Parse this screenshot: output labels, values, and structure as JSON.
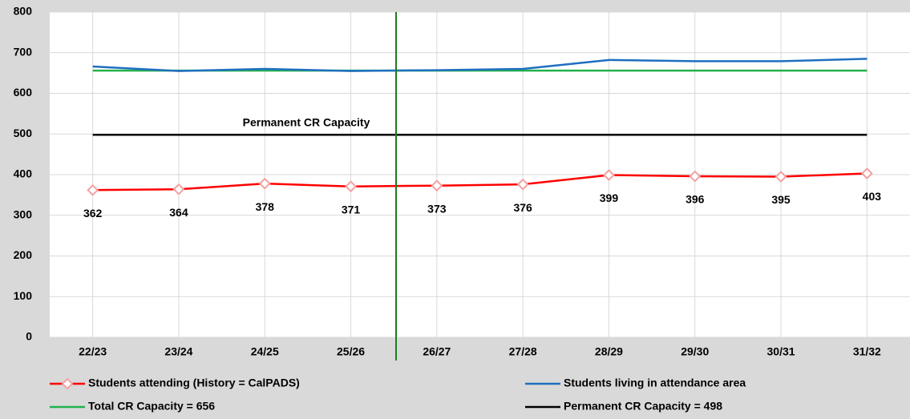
{
  "chart_data": {
    "type": "line",
    "categories": [
      "22/23",
      "23/24",
      "24/25",
      "25/26",
      "26/27",
      "27/28",
      "28/29",
      "29/30",
      "30/31",
      "31/32"
    ],
    "series": [
      {
        "name": "Students attending (History = CalPADS)",
        "color": "#ff0000",
        "marker": "diamond",
        "data_labels": true,
        "values": [
          362,
          364,
          378,
          371,
          373,
          376,
          399,
          396,
          395,
          403
        ]
      },
      {
        "name": "Students living in attendance area",
        "color": "#1f6fc0",
        "values": [
          666,
          655,
          660,
          655,
          657,
          660,
          682,
          679,
          679,
          685
        ]
      },
      {
        "name": "Total CR Capacity = 656",
        "color": "#22b14c",
        "values": [
          656,
          656,
          656,
          656,
          656,
          656,
          656,
          656,
          656,
          656
        ]
      },
      {
        "name": "Permanent CR Capacity = 498",
        "color": "#000000",
        "values": [
          498,
          498,
          498,
          498,
          498,
          498,
          498,
          498,
          498,
          498
        ]
      }
    ],
    "annotations": [
      "Permanent CR Capacity"
    ],
    "ylim": [
      0,
      800
    ],
    "yticks": [
      0,
      100,
      200,
      300,
      400,
      500,
      600,
      700,
      800
    ],
    "grid": true,
    "legend": "bottom"
  }
}
